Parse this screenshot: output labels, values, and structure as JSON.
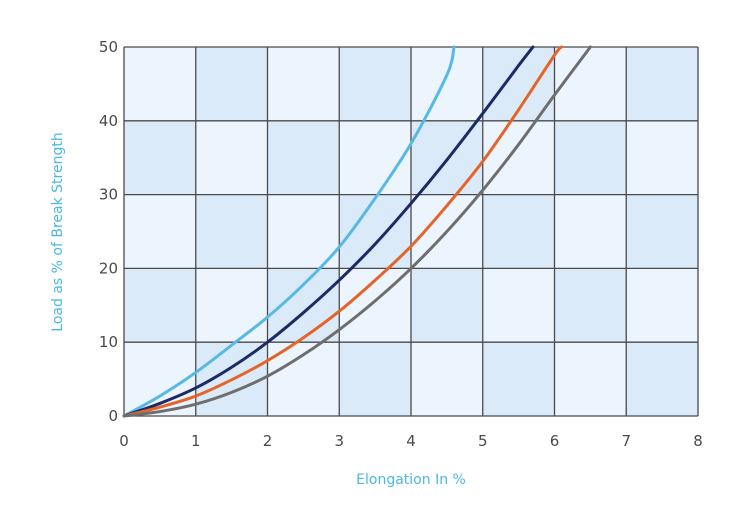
{
  "chart_data": {
    "type": "line",
    "title": "",
    "xlabel": "Elongation In %",
    "ylabel": "Load as % of Break Strength",
    "xlim": [
      0,
      8
    ],
    "ylim": [
      0,
      50
    ],
    "x_ticks": [
      "0",
      "1",
      "2",
      "3",
      "4",
      "5",
      "6",
      "7",
      "8"
    ],
    "y_ticks": [
      "0",
      "10",
      "20",
      "30",
      "40",
      "50"
    ],
    "grid": true,
    "legend": "none",
    "colors": {
      "band_light": "#ecf4fd",
      "band_dark": "#dbeaf8",
      "grid": "#4a4a4a",
      "axis_title": "#4ab8e4",
      "tick": "#4a4a4a"
    },
    "series": [
      {
        "color": "#57b9e4",
        "x": [
          0,
          0.5,
          1,
          1.5,
          2,
          2.5,
          3,
          3.5,
          4,
          4.5,
          4.6
        ],
        "y": [
          0,
          2.7,
          5.9,
          9.6,
          13.4,
          17.8,
          22.9,
          29.5,
          36.9,
          46.2,
          50
        ]
      },
      {
        "color": "#1d2a63",
        "x": [
          0,
          0.5,
          1,
          1.5,
          2,
          2.5,
          3,
          3.5,
          4,
          4.5,
          5,
          5.5,
          5.7
        ],
        "y": [
          0,
          1.7,
          3.8,
          6.6,
          10.0,
          14.0,
          18.4,
          23.3,
          28.8,
          34.7,
          41.0,
          47.5,
          50
        ]
      },
      {
        "color": "#e5642a",
        "x": [
          0,
          0.5,
          1,
          1.5,
          2,
          2.5,
          3,
          3.5,
          4,
          4.5,
          5,
          5.5,
          6,
          6.1
        ],
        "y": [
          0,
          1.2,
          2.7,
          4.9,
          7.5,
          10.6,
          14.2,
          18.4,
          23.0,
          28.5,
          34.5,
          41.5,
          48.9,
          50
        ]
      },
      {
        "color": "#6e6e6e",
        "x": [
          0,
          0.5,
          1,
          1.5,
          2,
          2.5,
          3,
          3.5,
          4,
          4.5,
          5,
          5.5,
          6,
          6.5
        ],
        "y": [
          0,
          0.6,
          1.6,
          3.2,
          5.4,
          8.3,
          11.7,
          15.6,
          20.0,
          25.0,
          30.6,
          36.8,
          43.5,
          50
        ]
      }
    ]
  }
}
